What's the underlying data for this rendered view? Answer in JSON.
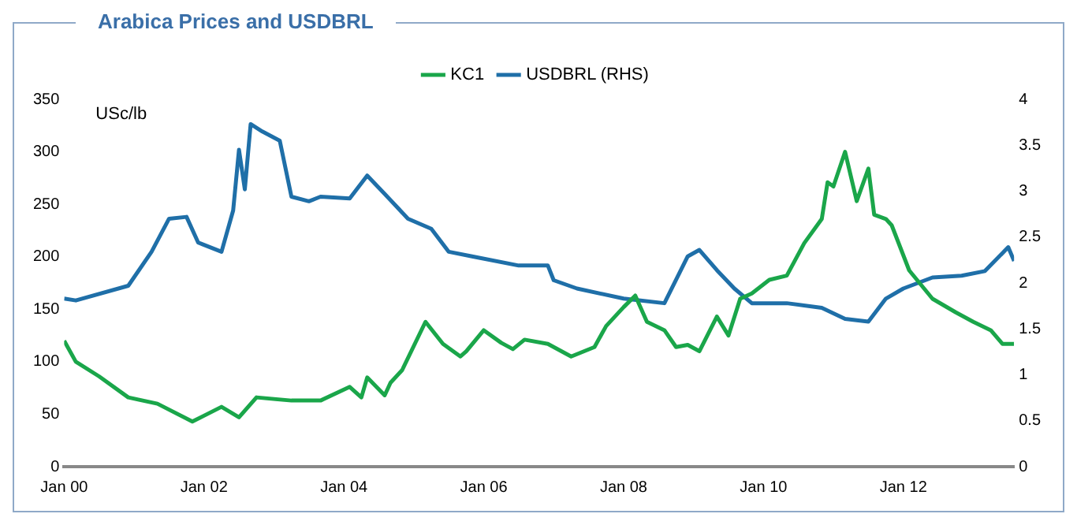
{
  "chart_data": {
    "type": "line",
    "title": "Arabica Prices and USDBRL",
    "ylabel": "USc/lb",
    "xlim": [
      "2000-01",
      "2013-08"
    ],
    "xticks": [
      {
        "value": "2000-01",
        "label": "Jan 00"
      },
      {
        "value": "2002-01",
        "label": "Jan 02"
      },
      {
        "value": "2004-01",
        "label": "Jan 04"
      },
      {
        "value": "2006-01",
        "label": "Jan 06"
      },
      {
        "value": "2008-01",
        "label": "Jan 08"
      },
      {
        "value": "2010-01",
        "label": "Jan 10"
      },
      {
        "value": "2012-01",
        "label": "Jan 12"
      }
    ],
    "ylim": [
      0,
      350
    ],
    "yticks": [
      0,
      50,
      100,
      150,
      200,
      250,
      300,
      350
    ],
    "y2lim": [
      0,
      4
    ],
    "y2ticks": [
      0,
      0.5,
      1,
      1.5,
      2,
      2.5,
      3,
      3.5,
      4
    ],
    "legend": "top",
    "grid": false,
    "marker": "none",
    "line_style": "solid",
    "series": [
      {
        "name": "KC1",
        "color": "#1aa64a",
        "x": [
          "2000-01",
          "2000-03",
          "2000-07",
          "2000-12",
          "2001-05",
          "2001-11",
          "2002-04",
          "2002-07",
          "2002-10",
          "2003-04",
          "2003-09",
          "2004-02",
          "2004-04",
          "2004-05",
          "2004-08",
          "2004-09",
          "2004-11",
          "2005-03",
          "2005-06",
          "2005-09",
          "2005-10",
          "2006-01",
          "2006-04",
          "2006-06",
          "2006-08",
          "2006-12",
          "2007-04",
          "2007-08",
          "2007-10",
          "2008-01",
          "2008-03",
          "2008-05",
          "2008-08",
          "2008-10",
          "2008-12",
          "2009-02",
          "2009-05",
          "2009-07",
          "2009-09",
          "2009-11",
          "2010-02",
          "2010-05",
          "2010-08",
          "2010-11",
          "2010-12",
          "2011-01",
          "2011-03",
          "2011-05",
          "2011-07",
          "2011-08",
          "2011-10",
          "2011-11",
          "2012-02",
          "2012-06",
          "2012-10",
          "2013-01",
          "2013-04",
          "2013-06",
          "2013-08"
        ],
        "values": [
          120,
          100,
          86,
          66,
          60,
          43,
          57,
          47,
          66,
          63,
          63,
          76,
          66,
          85,
          68,
          80,
          92,
          138,
          117,
          105,
          110,
          130,
          118,
          112,
          121,
          117,
          105,
          114,
          134,
          152,
          163,
          138,
          130,
          114,
          116,
          110,
          143,
          125,
          160,
          165,
          178,
          182,
          213,
          236,
          271,
          267,
          300,
          253,
          284,
          240,
          236,
          230,
          187,
          160,
          147,
          138,
          130,
          117,
          117
        ]
      },
      {
        "name": "USDBRL (RHS)",
        "color": "#1f6fa8",
        "axis": "y2",
        "x": [
          "2000-01",
          "2000-03",
          "2000-12",
          "2001-04",
          "2001-07",
          "2001-10",
          "2001-12",
          "2002-04",
          "2002-06",
          "2002-07",
          "2002-08",
          "2002-09",
          "2002-11",
          "2003-02",
          "2003-04",
          "2003-07",
          "2003-09",
          "2004-02",
          "2004-05",
          "2004-08",
          "2004-12",
          "2005-04",
          "2005-07",
          "2005-11",
          "2006-07",
          "2006-12",
          "2007-01",
          "2007-05",
          "2008-01",
          "2008-08",
          "2008-12",
          "2009-02",
          "2009-05",
          "2009-08",
          "2009-11",
          "2010-05",
          "2010-11",
          "2011-03",
          "2011-07",
          "2011-10",
          "2012-01",
          "2012-06",
          "2012-11",
          "2013-03",
          "2013-07",
          "2013-08"
        ],
        "values": [
          1.83,
          1.81,
          1.97,
          2.34,
          2.7,
          2.72,
          2.44,
          2.34,
          2.79,
          3.45,
          3.02,
          3.73,
          3.65,
          3.55,
          2.94,
          2.89,
          2.94,
          2.92,
          3.17,
          2.97,
          2.7,
          2.59,
          2.34,
          2.29,
          2.19,
          2.19,
          2.03,
          1.94,
          1.83,
          1.78,
          2.29,
          2.36,
          2.14,
          1.94,
          1.78,
          1.78,
          1.73,
          1.61,
          1.58,
          1.83,
          1.94,
          2.06,
          2.08,
          2.13,
          2.39,
          2.24
        ]
      }
    ]
  }
}
